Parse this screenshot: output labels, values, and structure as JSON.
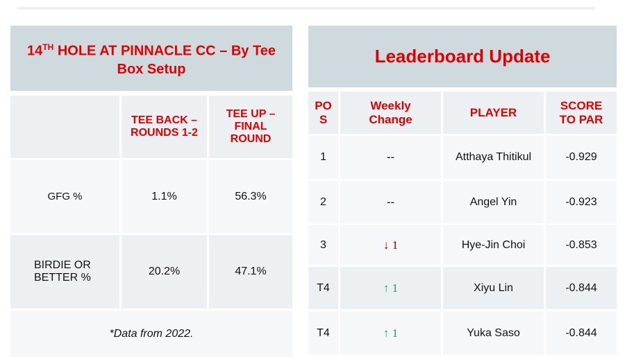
{
  "left_table": {
    "title_pre": "14",
    "title_sup": "TH",
    "title_rest": " HOLE AT PINNACLE CC – By Tee Box Setup",
    "headers": [
      "",
      "TEE BACK – ROUNDS 1-2",
      "TEE UP – FINAL ROUND"
    ],
    "rows": [
      {
        "label": "GFG %",
        "tee_back": "1.1%",
        "tee_up": "56.3%"
      },
      {
        "label": "BIRDIE OR BETTER %",
        "tee_back": "20.2%",
        "tee_up": "47.1%"
      }
    ],
    "note": "*Data from 2022."
  },
  "leaderboard": {
    "title": "Leaderboard Update",
    "headers": [
      "PO S",
      "Weekly Change",
      "PLAYER",
      "SCORE TO PAR"
    ],
    "rows": [
      {
        "pos": "1",
        "change": "--",
        "player": "Atthaya Thitikul",
        "score": "-0.929"
      },
      {
        "pos": "2",
        "change": "--",
        "player": "Angel Yin",
        "score": "-0.923"
      },
      {
        "pos": "3",
        "change": "↓ 1",
        "player": "Hye-Jin Choi",
        "score": "-0.853"
      },
      {
        "pos": "T4",
        "change": "↑ 1",
        "player": "Xiyu Lin",
        "score": "-0.844"
      },
      {
        "pos": "T4",
        "change": "↑ 1",
        "player": "Yuka Saso",
        "score": "-0.844"
      }
    ],
    "colors": {
      "down": "#8b0000",
      "up": "#1a9a78",
      "accent": "#e00000"
    }
  }
}
